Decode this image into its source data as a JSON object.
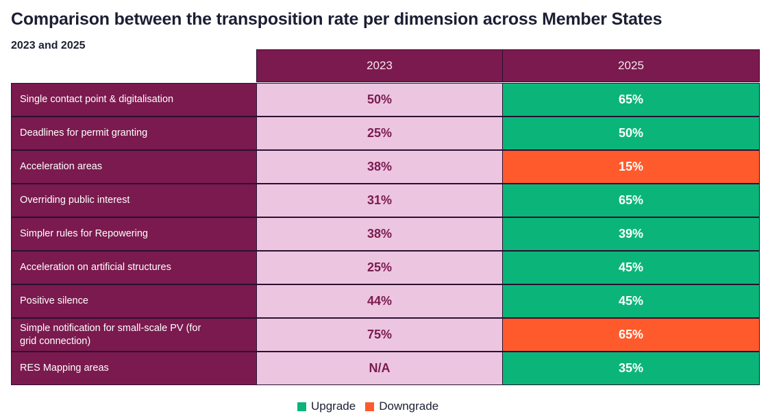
{
  "title": "Comparison between the transposition rate per dimension across Member States",
  "subtitle": "2023 and 2025",
  "chart_data": {
    "type": "table",
    "columns": [
      "2023",
      "2025"
    ],
    "rows": [
      {
        "label": "Single contact point & digitalisation",
        "v2023": "50%",
        "v2025": "65%",
        "status": "upgrade"
      },
      {
        "label": "Deadlines for permit granting",
        "v2023": "25%",
        "v2025": "50%",
        "status": "upgrade"
      },
      {
        "label": "Acceleration areas",
        "v2023": "38%",
        "v2025": "15%",
        "status": "downgrade"
      },
      {
        "label": "Overriding public interest",
        "v2023": "31%",
        "v2025": "65%",
        "status": "upgrade"
      },
      {
        "label": "Simpler rules for Repowering",
        "v2023": "38%",
        "v2025": "39%",
        "status": "upgrade"
      },
      {
        "label": "Acceleration on artificial structures",
        "v2023": "25%",
        "v2025": "45%",
        "status": "upgrade"
      },
      {
        "label": "Positive silence",
        "v2023": "44%",
        "v2025": "45%",
        "status": "upgrade"
      },
      {
        "label": "Simple notification for small-scale PV (for grid connection)",
        "v2023": "75%",
        "v2025": "65%",
        "status": "downgrade"
      },
      {
        "label": "RES Mapping areas",
        "v2023": "N/A",
        "v2025": "35%",
        "status": "upgrade"
      }
    ],
    "legend": [
      {
        "key": "upgrade",
        "label": "Upgrade",
        "color": "#0bb57a"
      },
      {
        "key": "downgrade",
        "label": "Downgrade",
        "color": "#ff5a2b"
      }
    ]
  },
  "colors": {
    "header_bg": "#7b1a4f",
    "col2023_bg": "#ecc5e0",
    "upgrade": "#0bb57a",
    "downgrade": "#ff5a2b"
  }
}
